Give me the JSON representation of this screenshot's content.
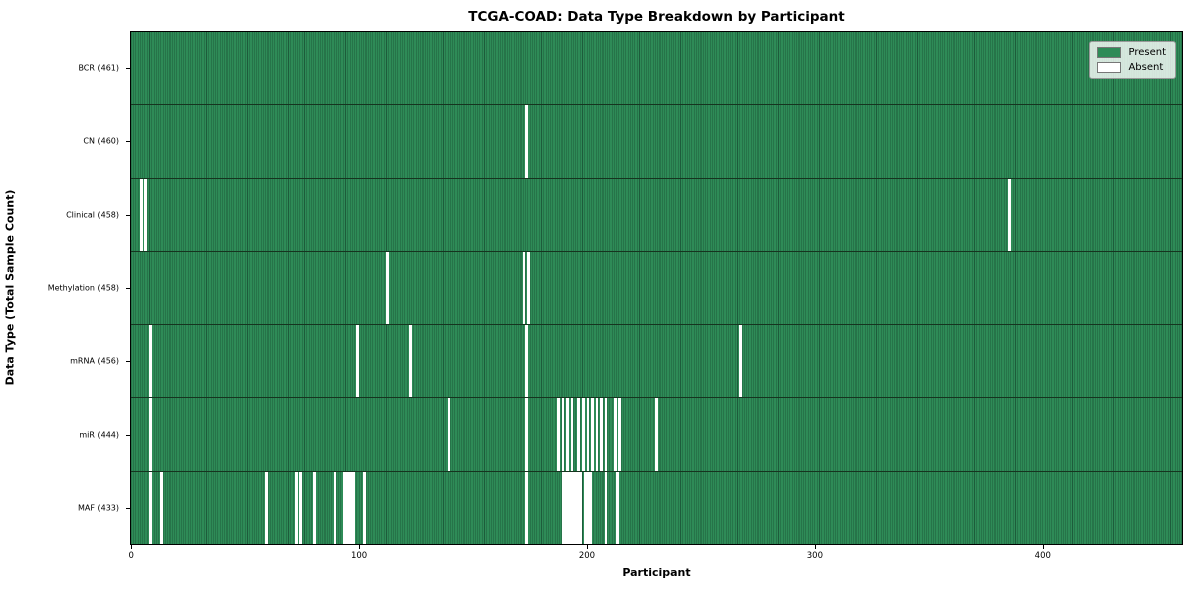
{
  "chart_data": {
    "type": "heatmap",
    "title": "TCGA-COAD: Data Type Breakdown by Participant",
    "xlabel": "Participant",
    "ylabel": "Data Type (Total Sample Count)",
    "n_participants": 461,
    "x_ticks": [
      0,
      100,
      200,
      300,
      400
    ],
    "legend": {
      "present_label": "Present",
      "absent_label": "Absent",
      "position": "upper right"
    },
    "colors": {
      "present": "#2E8B57",
      "present_edge": "#1d5c3b",
      "absent": "#ffffff",
      "row_separator": "#16341f"
    },
    "rows": [
      {
        "data_type": "BCR",
        "label": "BCR (461)",
        "total": 461,
        "absent_participants": []
      },
      {
        "data_type": "CN",
        "label": "CN (460)",
        "total": 460,
        "absent_participants": [
          173
        ]
      },
      {
        "data_type": "Clinical",
        "label": "Clinical (458)",
        "total": 458,
        "absent_participants": [
          4,
          6,
          385
        ]
      },
      {
        "data_type": "Methylation",
        "label": "Methylation (458)",
        "total": 458,
        "absent_participants": [
          112,
          172,
          174
        ]
      },
      {
        "data_type": "mRNA",
        "label": "mRNA (456)",
        "total": 456,
        "absent_participants": [
          8,
          99,
          122,
          173,
          267
        ]
      },
      {
        "data_type": "miR",
        "label": "miR (444)",
        "total": 444,
        "absent_participants": [
          8,
          139,
          173,
          187,
          189,
          191,
          193,
          196,
          198,
          200,
          202,
          204,
          206,
          208,
          212,
          214,
          230
        ]
      },
      {
        "data_type": "MAF",
        "label": "MAF (433)",
        "total": 433,
        "absent_participants": [
          8,
          13,
          59,
          72,
          74,
          80,
          89,
          93,
          94,
          95,
          96,
          97,
          102,
          173,
          189,
          190,
          191,
          192,
          193,
          194,
          195,
          196,
          197,
          199,
          200,
          201,
          208,
          213
        ]
      }
    ]
  }
}
